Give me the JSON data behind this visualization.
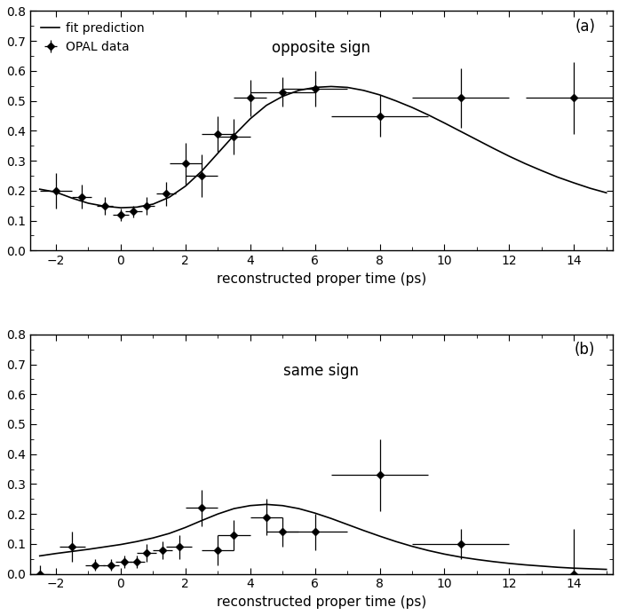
{
  "panel_a": {
    "title": "opposite sign",
    "label": "(a)",
    "data_x": [
      -2.0,
      -1.2,
      -0.5,
      0.0,
      0.4,
      0.8,
      1.4,
      2.0,
      2.5,
      3.0,
      3.5,
      4.0,
      5.0,
      6.0,
      8.0,
      10.5,
      14.0
    ],
    "data_y": [
      0.2,
      0.18,
      0.15,
      0.12,
      0.13,
      0.15,
      0.19,
      0.29,
      0.25,
      0.39,
      0.38,
      0.51,
      0.53,
      0.54,
      0.45,
      0.51,
      0.51
    ],
    "data_xerr": [
      0.5,
      0.3,
      0.25,
      0.25,
      0.25,
      0.25,
      0.3,
      0.5,
      0.5,
      0.5,
      0.5,
      0.5,
      1.0,
      1.0,
      1.5,
      1.5,
      1.5
    ],
    "data_yerr": [
      0.06,
      0.04,
      0.03,
      0.02,
      0.02,
      0.03,
      0.04,
      0.07,
      0.07,
      0.06,
      0.06,
      0.06,
      0.05,
      0.06,
      0.07,
      0.1,
      0.12
    ],
    "fit_x": [
      -2.5,
      -2.0,
      -1.5,
      -1.0,
      -0.5,
      0.0,
      0.5,
      1.0,
      1.5,
      2.0,
      2.5,
      3.0,
      3.5,
      4.0,
      4.5,
      5.0,
      5.5,
      6.0,
      6.5,
      7.0,
      7.5,
      8.0,
      8.5,
      9.0,
      9.5,
      10.0,
      10.5,
      11.0,
      11.5,
      12.0,
      12.5,
      13.0,
      13.5,
      14.0,
      14.5,
      15.0
    ],
    "fit_y": [
      0.205,
      0.195,
      0.175,
      0.158,
      0.148,
      0.143,
      0.145,
      0.155,
      0.178,
      0.215,
      0.265,
      0.325,
      0.385,
      0.44,
      0.485,
      0.515,
      0.535,
      0.545,
      0.548,
      0.545,
      0.535,
      0.52,
      0.5,
      0.478,
      0.453,
      0.426,
      0.398,
      0.37,
      0.342,
      0.315,
      0.29,
      0.267,
      0.245,
      0.226,
      0.208,
      0.193
    ]
  },
  "panel_b": {
    "title": "same sign",
    "label": "(b)",
    "data_x": [
      -2.5,
      -1.5,
      -0.8,
      -0.3,
      0.1,
      0.5,
      0.8,
      1.3,
      1.8,
      2.5,
      3.0,
      3.5,
      4.5,
      5.0,
      6.0,
      8.0,
      10.5,
      14.0
    ],
    "data_y": [
      0.0,
      0.09,
      0.03,
      0.03,
      0.04,
      0.04,
      0.07,
      0.08,
      0.09,
      0.22,
      0.08,
      0.13,
      0.19,
      0.14,
      0.14,
      0.33,
      0.1,
      0.0
    ],
    "data_xerr": [
      0.3,
      0.4,
      0.3,
      0.25,
      0.25,
      0.25,
      0.3,
      0.3,
      0.4,
      0.5,
      0.5,
      0.5,
      0.5,
      0.5,
      1.0,
      1.5,
      1.5,
      1.5
    ],
    "data_yerr": [
      0.03,
      0.05,
      0.02,
      0.02,
      0.02,
      0.02,
      0.03,
      0.03,
      0.04,
      0.06,
      0.05,
      0.05,
      0.06,
      0.05,
      0.06,
      0.12,
      0.05,
      0.15
    ],
    "fit_x": [
      -2.5,
      -2.0,
      -1.5,
      -1.0,
      -0.5,
      0.0,
      0.5,
      1.0,
      1.5,
      2.0,
      2.5,
      3.0,
      3.5,
      4.0,
      4.5,
      5.0,
      5.5,
      6.0,
      6.5,
      7.0,
      7.5,
      8.0,
      8.5,
      9.0,
      9.5,
      10.0,
      10.5,
      11.0,
      11.5,
      12.0,
      12.5,
      13.0,
      13.5,
      14.0,
      14.5,
      15.0
    ],
    "fit_y": [
      0.06,
      0.068,
      0.075,
      0.082,
      0.09,
      0.098,
      0.108,
      0.12,
      0.135,
      0.155,
      0.178,
      0.2,
      0.218,
      0.228,
      0.232,
      0.228,
      0.218,
      0.203,
      0.185,
      0.165,
      0.145,
      0.126,
      0.108,
      0.092,
      0.078,
      0.066,
      0.056,
      0.048,
      0.041,
      0.035,
      0.03,
      0.026,
      0.022,
      0.019,
      0.017,
      0.015
    ]
  },
  "xlim": [
    -2.8,
    15.2
  ],
  "ylim_a": [
    0.0,
    0.8
  ],
  "ylim_b": [
    0.0,
    0.8
  ],
  "yticks": [
    0,
    0.1,
    0.2,
    0.3,
    0.4,
    0.5,
    0.6,
    0.7,
    0.8
  ],
  "xticks": [
    -2,
    0,
    2,
    4,
    6,
    8,
    10,
    12,
    14
  ],
  "xlabel": "reconstructed proper time (ps)",
  "line_color": "#000000",
  "marker_color": "#000000",
  "legend_marker": "OPAL data",
  "legend_line": "fit prediction",
  "bg_color": "#ffffff"
}
